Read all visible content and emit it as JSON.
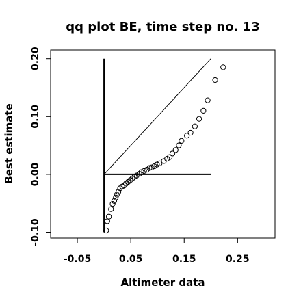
{
  "chart_data": {
    "type": "scatter",
    "title": "qq plot BE, time step no. 13",
    "xlabel": "Altimeter data",
    "ylabel": "Best estimate",
    "xlim": [
      -0.1,
      0.32
    ],
    "ylim": [
      -0.11,
      0.215
    ],
    "x_ticks": [
      -0.05,
      0.05,
      0.15,
      0.25
    ],
    "x_tick_labels": [
      "-0.05",
      "0.05",
      "0.15",
      "0.25"
    ],
    "y_ticks": [
      -0.1,
      0.0,
      0.1,
      0.2
    ],
    "y_tick_labels": [
      "-0.10",
      "0.00",
      "0.10",
      "0.20"
    ],
    "grid": false,
    "reference_lines": {
      "identity": {
        "from": [
          0.0,
          0.0
        ],
        "to": [
          0.2,
          0.2
        ]
      },
      "vertical": {
        "x": 0.0,
        "from": -0.1,
        "to": 0.2
      },
      "horizontal": {
        "y": 0.0,
        "from": 0.0,
        "to": 0.2
      }
    },
    "points": [
      {
        "x": 0.004,
        "y": -0.097
      },
      {
        "x": 0.006,
        "y": -0.081
      },
      {
        "x": 0.009,
        "y": -0.073
      },
      {
        "x": 0.013,
        "y": -0.06
      },
      {
        "x": 0.016,
        "y": -0.051
      },
      {
        "x": 0.019,
        "y": -0.046
      },
      {
        "x": 0.022,
        "y": -0.04
      },
      {
        "x": 0.024,
        "y": -0.035
      },
      {
        "x": 0.027,
        "y": -0.03
      },
      {
        "x": 0.03,
        "y": -0.024
      },
      {
        "x": 0.034,
        "y": -0.021
      },
      {
        "x": 0.038,
        "y": -0.019
      },
      {
        "x": 0.041,
        "y": -0.016
      },
      {
        "x": 0.045,
        "y": -0.013
      },
      {
        "x": 0.049,
        "y": -0.01
      },
      {
        "x": 0.053,
        "y": -0.007
      },
      {
        "x": 0.057,
        "y": -0.004
      },
      {
        "x": 0.061,
        "y": -0.002
      },
      {
        "x": 0.066,
        "y": 0.001
      },
      {
        "x": 0.07,
        "y": 0.004
      },
      {
        "x": 0.075,
        "y": 0.006
      },
      {
        "x": 0.08,
        "y": 0.008
      },
      {
        "x": 0.085,
        "y": 0.011
      },
      {
        "x": 0.089,
        "y": 0.012
      },
      {
        "x": 0.094,
        "y": 0.014
      },
      {
        "x": 0.099,
        "y": 0.017
      },
      {
        "x": 0.104,
        "y": 0.019
      },
      {
        "x": 0.112,
        "y": 0.023
      },
      {
        "x": 0.118,
        "y": 0.027
      },
      {
        "x": 0.123,
        "y": 0.03
      },
      {
        "x": 0.128,
        "y": 0.036
      },
      {
        "x": 0.134,
        "y": 0.042
      },
      {
        "x": 0.14,
        "y": 0.05
      },
      {
        "x": 0.145,
        "y": 0.058
      },
      {
        "x": 0.155,
        "y": 0.067
      },
      {
        "x": 0.162,
        "y": 0.072
      },
      {
        "x": 0.17,
        "y": 0.083
      },
      {
        "x": 0.178,
        "y": 0.096
      },
      {
        "x": 0.186,
        "y": 0.11
      },
      {
        "x": 0.194,
        "y": 0.128
      },
      {
        "x": 0.208,
        "y": 0.163
      },
      {
        "x": 0.223,
        "y": 0.185
      }
    ]
  }
}
